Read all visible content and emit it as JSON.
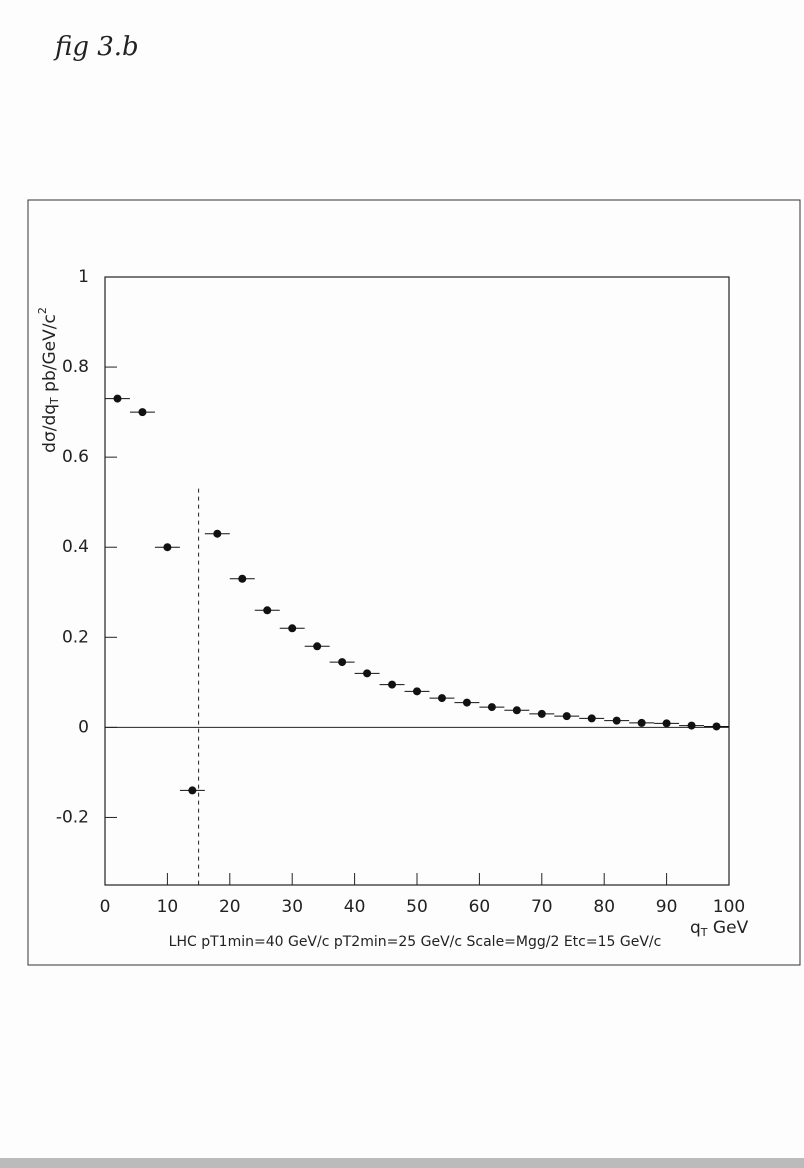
{
  "chart_data": {
    "type": "scatter",
    "figure_label": "fig 3.b",
    "caption": "LHC pT1min=40 GeV/c pT2min=25 GeV/c Scale=Mgg/2 Etc=15 GeV/c",
    "ylabel": [
      "dσ/dq",
      "T",
      "  pb/GeV/c",
      "2"
    ],
    "xlabel": [
      "q",
      "T",
      " GeV"
    ],
    "x": [
      2,
      6,
      10,
      14,
      18,
      22,
      26,
      30,
      34,
      38,
      42,
      46,
      50,
      54,
      58,
      62,
      66,
      70,
      74,
      78,
      82,
      86,
      90,
      94,
      98
    ],
    "values": [
      0.73,
      0.7,
      0.4,
      -0.14,
      0.43,
      0.33,
      0.26,
      0.22,
      0.18,
      0.145,
      0.12,
      0.095,
      0.08,
      0.065,
      0.055,
      0.045,
      0.038,
      0.03,
      0.025,
      0.02,
      0.015,
      0.01,
      0.009,
      0.004,
      0.002
    ],
    "xerr": 2,
    "color": "#111111",
    "xlim": [
      0,
      100
    ],
    "xticks": [
      0,
      10,
      20,
      30,
      40,
      50,
      60,
      70,
      80,
      90,
      100
    ],
    "ylim": [
      -0.35,
      1
    ],
    "yticks": [
      -0.2,
      0,
      0.2,
      0.4,
      0.6,
      0.8,
      1
    ],
    "zero_line": true,
    "cutoff_line": {
      "x": 15,
      "y_top": 0.53
    }
  }
}
